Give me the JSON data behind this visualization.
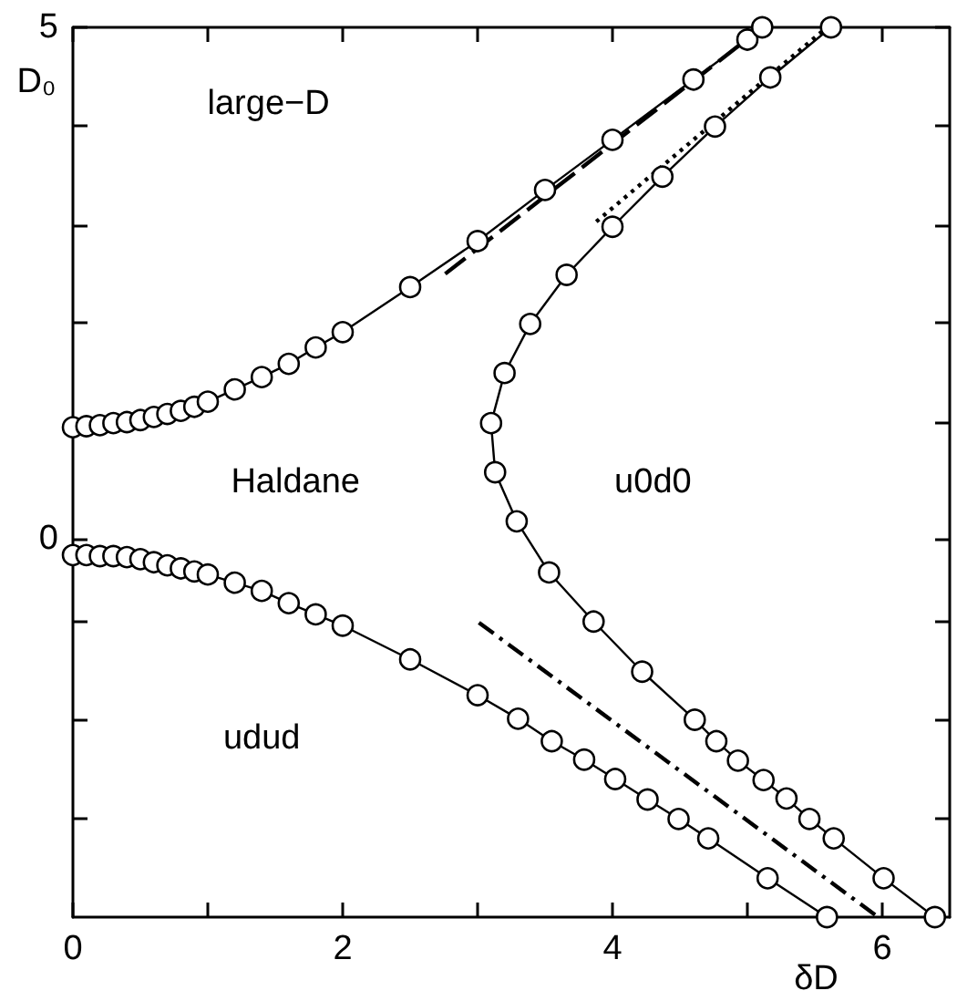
{
  "chart_data": {
    "type": "line",
    "xlabel": "δD",
    "ylabel": "D₀",
    "annotations": [
      "large−D",
      "Haldane",
      "u0d0",
      "udud"
    ],
    "xlim": [
      0,
      6.5
    ],
    "xticks": [
      0,
      {
        "value": 1,
        "label": null
      },
      2,
      {
        "value": 3,
        "label": null
      },
      4,
      {
        "value": 5,
        "label": null
      },
      6
    ],
    "ylim": [
      -3.7,
      5
    ],
    "yticks": [
      {
        "value": -2.73,
        "label": null
      },
      {
        "value": -1.77,
        "label": null
      },
      {
        "value": -0.8,
        "label": null
      },
      0,
      {
        "value": 1.14,
        "label": null
      },
      {
        "value": 2.11,
        "label": null
      },
      {
        "value": 3.07,
        "label": null
      },
      {
        "value": 4.04,
        "label": null
      },
      5
    ],
    "series": [
      {
        "color": "#000000",
        "marker": "circle",
        "line_style": "solid",
        "x": [
          0,
          0.1,
          0.2,
          0.3,
          0.4,
          0.5,
          0.6,
          0.7,
          0.8,
          0.9,
          1.0,
          1.2,
          1.4,
          1.6,
          1.8,
          2.0,
          2.5,
          3.0,
          3.5,
          4.0,
          4.6,
          5.0,
          5.11
        ],
        "values": [
          1.09,
          1.1,
          1.11,
          1.13,
          1.14,
          1.16,
          1.19,
          1.22,
          1.25,
          1.29,
          1.34,
          1.46,
          1.58,
          1.71,
          1.87,
          2.02,
          2.46,
          2.91,
          3.41,
          3.9,
          4.49,
          4.88,
          5.0
        ]
      },
      {
        "color": "#000000",
        "marker": "circle",
        "line_style": "solid",
        "x": [
          5.62,
          5.17,
          4.76,
          4.37,
          4.0,
          3.66,
          3.39,
          3.2,
          3.1,
          3.13,
          3.29,
          3.53,
          3.86,
          4.22,
          4.61,
          4.77,
          4.93,
          5.12,
          5.29,
          5.46,
          5.64,
          6.01,
          6.39
        ],
        "values": [
          5.0,
          4.51,
          4.03,
          3.54,
          3.05,
          2.58,
          2.1,
          1.62,
          1.13,
          0.65,
          0.17,
          -0.33,
          -0.81,
          -1.3,
          -1.77,
          -1.98,
          -2.17,
          -2.36,
          -2.54,
          -2.74,
          -2.93,
          -3.32,
          -3.7
        ]
      },
      {
        "color": "#000000",
        "marker": "circle",
        "line_style": "solid",
        "x": [
          0,
          0.1,
          0.2,
          0.3,
          0.4,
          0.5,
          0.6,
          0.7,
          0.8,
          0.9,
          1.0,
          1.2,
          1.4,
          1.6,
          1.8,
          2.0,
          2.5,
          3.0,
          3.3,
          3.55,
          3.79,
          4.02,
          4.26,
          4.49,
          4.71,
          5.15,
          5.59
        ],
        "values": [
          -0.16,
          -0.16,
          -0.17,
          -0.17,
          -0.18,
          -0.2,
          -0.23,
          -0.26,
          -0.29,
          -0.32,
          -0.35,
          -0.43,
          -0.51,
          -0.63,
          -0.74,
          -0.85,
          -1.18,
          -1.53,
          -1.76,
          -1.98,
          -2.16,
          -2.35,
          -2.55,
          -2.74,
          -2.93,
          -3.32,
          -3.7
        ]
      },
      {
        "color": "#000000",
        "marker": "none",
        "line_style": "dashed",
        "x": [
          2.76,
          5.11
        ],
        "values": [
          2.59,
          5.0
        ]
      },
      {
        "color": "#000000",
        "marker": "none",
        "line_style": "dotted",
        "x": [
          3.88,
          5.59
        ],
        "values": [
          3.1,
          5.0
        ]
      },
      {
        "color": "#000000",
        "marker": "none",
        "line_style": "dashdot",
        "x": [
          3.01,
          5.96
        ],
        "values": [
          -0.82,
          -3.69
        ]
      }
    ]
  }
}
